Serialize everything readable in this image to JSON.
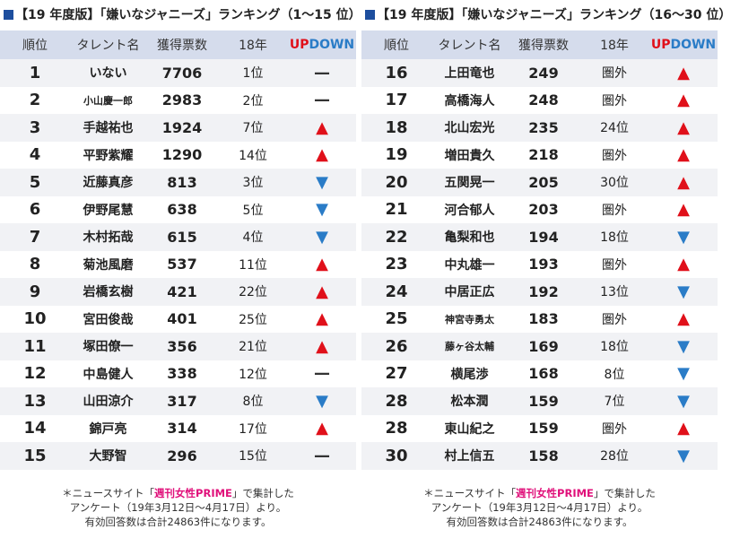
{
  "panels": [
    {
      "title": "【19 年度版】「嫌いなジャニーズ」ランキング（1～15 位）",
      "headers": [
        "順位",
        "タレント名",
        "獲得票数",
        "18年"
      ],
      "header_up": "UP",
      "header_down": "DOWN",
      "rows": [
        [
          1,
          "いない",
          7706,
          "1位",
          "—"
        ],
        [
          2,
          "小山慶一郎",
          2983,
          "2位",
          "—"
        ],
        [
          3,
          "手越祐也",
          1924,
          "7位",
          "▲"
        ],
        [
          4,
          "平野紫耀",
          1290,
          "14位",
          "▲"
        ],
        [
          5,
          "近藤真彦",
          813,
          "3位",
          "▼"
        ],
        [
          6,
          "伊野尾慧",
          638,
          "5位",
          "▼"
        ],
        [
          7,
          "木村拓哉",
          615,
          "4位",
          "▼"
        ],
        [
          8,
          "菊池風磨",
          537,
          "11位",
          "▲"
        ],
        [
          9,
          "岩橋玄樹",
          421,
          "22位",
          "▲"
        ],
        [
          10,
          "宮田俊哉",
          401,
          "25位",
          "▲"
        ],
        [
          11,
          "塚田僚一",
          356,
          "21位",
          "▲"
        ],
        [
          12,
          "中島健人",
          338,
          "12位",
          "—"
        ],
        [
          13,
          "山田涼介",
          317,
          "8位",
          "▼"
        ],
        [
          14,
          "錦戸亮",
          314,
          "17位",
          "▲"
        ],
        [
          15,
          "大野智",
          296,
          "15位",
          "—"
        ]
      ],
      "note": [
        "＊ニュースサイト「",
        "週刊女性PRIME",
        "」で集計した",
        "アンケート（19年3月12日～4月17日）より。",
        "有効回答数は合計24863件になります。"
      ]
    },
    {
      "title": "【19 年度版】「嫌いなジャニーズ」ランキング（16～30 位）",
      "headers": [
        "順位",
        "タレント名",
        "獲得票数",
        "18年"
      ],
      "header_up": "UP",
      "header_down": "DOWN",
      "rows": [
        [
          16,
          "上田竜也",
          249,
          "圏外",
          "▲"
        ],
        [
          17,
          "高橋海人",
          248,
          "圏外",
          "▲"
        ],
        [
          18,
          "北山宏光",
          235,
          "24位",
          "▲"
        ],
        [
          19,
          "増田貴久",
          218,
          "圏外",
          "▲"
        ],
        [
          20,
          "五関晃一",
          205,
          "30位",
          "▲"
        ],
        [
          21,
          "河合郁人",
          203,
          "圏外",
          "▲"
        ],
        [
          22,
          "亀梨和也",
          194,
          "18位",
          "▼"
        ],
        [
          23,
          "中丸雄一",
          193,
          "圏外",
          "▲"
        ],
        [
          24,
          "中居正広",
          192,
          "13位",
          "▼"
        ],
        [
          25,
          "神宮寺勇太",
          183,
          "圏外",
          "▲"
        ],
        [
          26,
          "藤ヶ谷太輔",
          169,
          "18位",
          "▼"
        ],
        [
          27,
          "横尾渉",
          168,
          "8位",
          "▼"
        ],
        [
          28,
          "松本潤",
          159,
          "7位",
          "▼"
        ],
        [
          28,
          "東山紀之",
          159,
          "圏外",
          "▲"
        ],
        [
          30,
          "村上信五",
          158,
          "28位",
          "▼"
        ]
      ],
      "note": [
        "＊ニュースサイト「",
        "週刊女性PRIME",
        "」で集計した",
        "アンケート（19年3月12日～4月17日）より。",
        "有効回答数は合計24863件になります。"
      ]
    }
  ]
}
